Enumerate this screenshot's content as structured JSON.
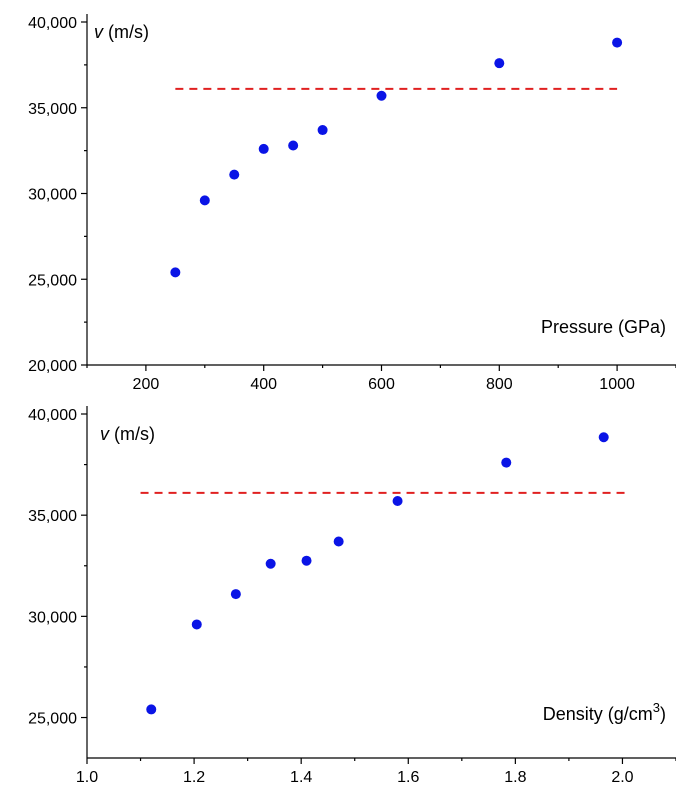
{
  "chart_data": [
    {
      "type": "scatter",
      "title": "",
      "xlabel": "Pressure (GPa)",
      "ylabel_var": "v",
      "ylabel_unit": " (m/s)",
      "xlim": [
        100,
        1100
      ],
      "ylim": [
        20000,
        40000
      ],
      "xticks": [
        200,
        400,
        600,
        800,
        1000
      ],
      "xtick_labels": [
        "200",
        "400",
        "600",
        "800",
        "1000"
      ],
      "yticks": [
        20000,
        25000,
        30000,
        35000,
        40000
      ],
      "ytick_labels": [
        "20,000",
        "25,000",
        "30,000",
        "35,000",
        "40,000"
      ],
      "grid": false,
      "point_color": "#0a14e6",
      "line_color": "#e02020",
      "x": [
        250,
        300,
        350,
        400,
        450,
        500,
        600,
        800,
        1000
      ],
      "y": [
        25400,
        29600,
        31100,
        32600,
        32800,
        33700,
        35700,
        37600,
        38800
      ],
      "reference_line": {
        "y": 36100,
        "x_range": [
          250,
          1000
        ],
        "style": "dashed"
      }
    },
    {
      "type": "scatter",
      "title": "",
      "xlabel_main": "Density (g/cm",
      "xlabel_sup": "3",
      "xlabel_end": ")",
      "ylabel_var": "v",
      "ylabel_unit": " (m/s)",
      "xlim": [
        1.0,
        2.1
      ],
      "ylim": [
        23000,
        40000
      ],
      "xticks": [
        1.0,
        1.2,
        1.4,
        1.6,
        1.8,
        2.0
      ],
      "xtick_labels": [
        "1.0",
        "1.2",
        "1.4",
        "1.6",
        "1.8",
        "2.0"
      ],
      "yticks": [
        25000,
        30000,
        35000,
        40000
      ],
      "ytick_labels": [
        "25,000",
        "30,000",
        "35,000",
        "40,000"
      ],
      "grid": false,
      "point_color": "#0a14e6",
      "line_color": "#e02020",
      "x": [
        1.12,
        1.205,
        1.278,
        1.343,
        1.41,
        1.47,
        1.58,
        1.783,
        1.965
      ],
      "y": [
        25400,
        29600,
        31100,
        32600,
        32750,
        33700,
        35700,
        37600,
        38850
      ],
      "reference_line": {
        "y": 36100,
        "x_range": [
          1.1,
          2.005
        ],
        "style": "dashed"
      }
    }
  ]
}
